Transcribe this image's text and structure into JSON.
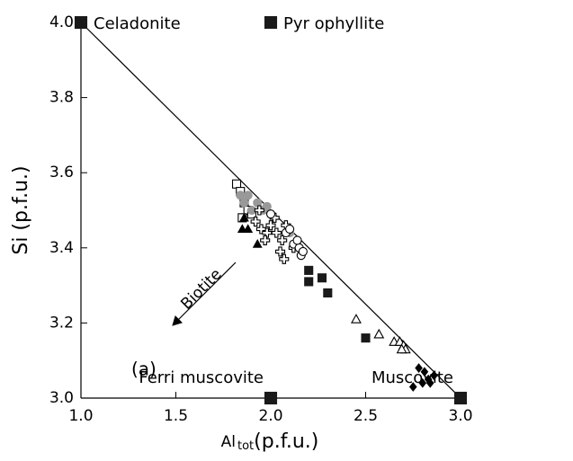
{
  "chart_data": {
    "type": "scatter",
    "ylabel": "Si (p.f.u.)",
    "xlabel": [
      "Al",
      "tot",
      "(p.f.u.)"
    ],
    "xlim": [
      1,
      3
    ],
    "ylim": [
      3,
      4
    ],
    "xticks": [
      {
        "value": 1,
        "label": "1.0"
      },
      1.5,
      {
        "value": 2,
        "label": "2.0"
      },
      2.5,
      {
        "value": 3,
        "label": "3.0"
      }
    ],
    "yticks": [
      {
        "value": 3,
        "label": "3.0"
      },
      3.2,
      3.4,
      3.6,
      3.8,
      {
        "value": 4,
        "label": "4.0"
      }
    ],
    "grid": false,
    "annotations": [
      "(a)",
      "Biotite"
    ],
    "line": {
      "x": [
        1,
        3
      ],
      "y": [
        4,
        3
      ],
      "color": "#000000"
    },
    "series": [
      {
        "marker": "square",
        "filled": true,
        "color": "#1a1a1a",
        "size": 13,
        "labels": [
          "Celadonite",
          "Pyr ophyllite",
          "Ferri muscovite",
          "Muscovite"
        ],
        "x": [
          1,
          2,
          2,
          3
        ],
        "y": [
          4,
          4,
          3,
          3
        ]
      },
      {
        "marker": "square",
        "filled": false,
        "color": "#000000",
        "size": 9,
        "x": [
          1.82,
          1.84,
          1.86,
          1.88,
          1.85,
          1.9
        ],
        "y": [
          3.57,
          3.55,
          3.52,
          3.5,
          3.48,
          3.49
        ]
      },
      {
        "marker": "circle",
        "filled": true,
        "color": "#999999",
        "size": 9,
        "x": [
          1.84,
          1.86,
          1.9,
          1.93,
          1.96,
          1.98,
          2.0,
          1.88,
          2.15,
          2.1
        ],
        "y": [
          3.54,
          3.52,
          3.5,
          3.52,
          3.5,
          3.51,
          3.49,
          3.54,
          3.4,
          3.44
        ]
      },
      {
        "marker": "cross",
        "filled": false,
        "color": "#000000",
        "size": 10,
        "x": [
          1.92,
          1.95,
          1.98,
          2.0,
          2.03,
          2.06,
          2.08,
          1.97,
          2.12,
          2.05,
          1.94,
          2.02,
          2.07
        ],
        "y": [
          3.47,
          3.45,
          3.44,
          3.46,
          3.44,
          3.42,
          3.46,
          3.42,
          3.4,
          3.39,
          3.5,
          3.48,
          3.37
        ]
      },
      {
        "marker": "circle",
        "filled": false,
        "color": "#000000",
        "size": 9,
        "x": [
          2.08,
          2.1,
          2.12,
          2.15,
          2.16,
          2.17,
          2.0,
          2.14
        ],
        "y": [
          3.44,
          3.45,
          3.41,
          3.4,
          3.38,
          3.39,
          3.49,
          3.42
        ]
      },
      {
        "marker": "triangle",
        "filled": true,
        "color": "#000000",
        "size": 9,
        "x": [
          1.85,
          1.88,
          1.93,
          1.86
        ],
        "y": [
          3.45,
          3.45,
          3.41,
          3.48
        ]
      },
      {
        "marker": "square",
        "filled": true,
        "color": "#1a1a1a",
        "size": 9,
        "x": [
          2.2,
          2.2,
          2.27,
          2.3,
          2.5
        ],
        "y": [
          3.34,
          3.31,
          3.32,
          3.28,
          3.16
        ]
      },
      {
        "marker": "triangle",
        "filled": false,
        "color": "#000000",
        "size": 10,
        "x": [
          2.45,
          2.57,
          2.65,
          2.68,
          2.7,
          2.71,
          2.69
        ],
        "y": [
          3.21,
          3.17,
          3.15,
          3.15,
          3.14,
          3.13,
          3.13
        ]
      },
      {
        "marker": "diamond",
        "filled": true,
        "color": "#000000",
        "size": 9,
        "x": [
          2.78,
          2.81,
          2.83,
          2.84,
          2.86,
          2.75,
          2.8
        ],
        "y": [
          3.08,
          3.07,
          3.05,
          3.04,
          3.06,
          3.03,
          3.04
        ]
      }
    ]
  }
}
